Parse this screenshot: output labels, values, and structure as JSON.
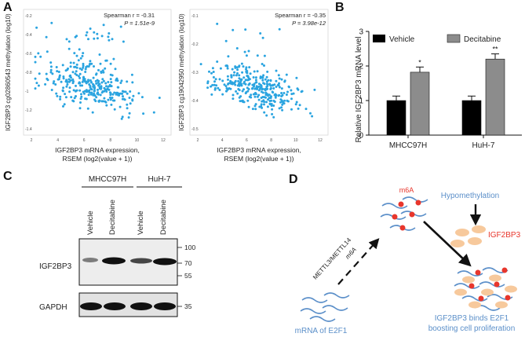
{
  "panels": {
    "A": "A",
    "B": "B",
    "C": "C",
    "D": "D"
  },
  "panel_a": {
    "left": {
      "stat_line1": "Spearman r = -0.31",
      "stat_line2": "P = 1.51e-9",
      "ylabel": "IGF2BP3 cg02860543 methylation (log10)",
      "xlabel_line1": "IGF2BP3 mRNA expression,",
      "xlabel_line2": "RSEM (log2(value + 1))",
      "xticks": [
        "2",
        "4",
        "6",
        "8",
        "10",
        "12"
      ],
      "yticks": [
        "-0.2",
        "-0.4",
        "-0.6",
        "-0.8",
        "-1",
        "-1.2",
        "-1.4"
      ]
    },
    "right": {
      "stat_line1": "Spearman r = -0.35",
      "stat_line2": "P = 3.98e-12",
      "ylabel": "IGF2BP3 cg19042950 methylation (log10)",
      "xlabel_line1": "IGF2BP3 mRNA expression,",
      "xlabel_line2": "RSEM (log2(value + 1))",
      "xticks": [
        "2",
        "4",
        "6",
        "8",
        "10",
        "12"
      ],
      "yticks": [
        "-0.1",
        "-0.2",
        "-0.3",
        "-0.4",
        "-0.5"
      ]
    },
    "point_color": "#2aa4e0"
  },
  "chart_data": [
    {
      "type": "bar",
      "title": "",
      "categories": [
        "MHCC97H",
        "HuH-7"
      ],
      "series": [
        {
          "name": "Vehicle",
          "values": [
            1.0,
            1.0
          ],
          "errors": [
            0.13,
            0.13
          ],
          "color": "#000000"
        },
        {
          "name": "Decitabine",
          "values": [
            1.82,
            2.2
          ],
          "errors": [
            0.15,
            0.15
          ],
          "color": "#8c8c8c"
        }
      ],
      "significance": [
        [
          "",
          "*"
        ],
        [
          "",
          "**"
        ]
      ],
      "ylabel": "Relative IGF2BP3 mRNA level",
      "ylim": [
        0,
        3
      ],
      "yticks": [
        "0",
        "1",
        "2",
        "3"
      ]
    }
  ],
  "panel_c": {
    "cell_lines": [
      "MHCC97H",
      "HuH-7"
    ],
    "lanes": [
      "Vehicle",
      "Decitabine",
      "Vehicle",
      "Decitabine"
    ],
    "rows": [
      "IGF2BP3",
      "GAPDH"
    ],
    "markers_top": [
      "100",
      "70",
      "55"
    ],
    "markers_bottom": [
      "35"
    ]
  },
  "panel_d": {
    "m6a": "m6A",
    "hypomethylation": "Hypomethylation",
    "igf2bp3": "IGF2BP3",
    "writer_line1": "METTL3/METTL14",
    "writer_line2": "m6A",
    "mrna": "mRNA  of E2F1",
    "result_line1": "IGF2BP3 binds E2F1",
    "result_line2": "boosting cell proliferation",
    "blue": "#5b8fc9",
    "red": "#e8362c",
    "peach": "#f7c99c"
  }
}
